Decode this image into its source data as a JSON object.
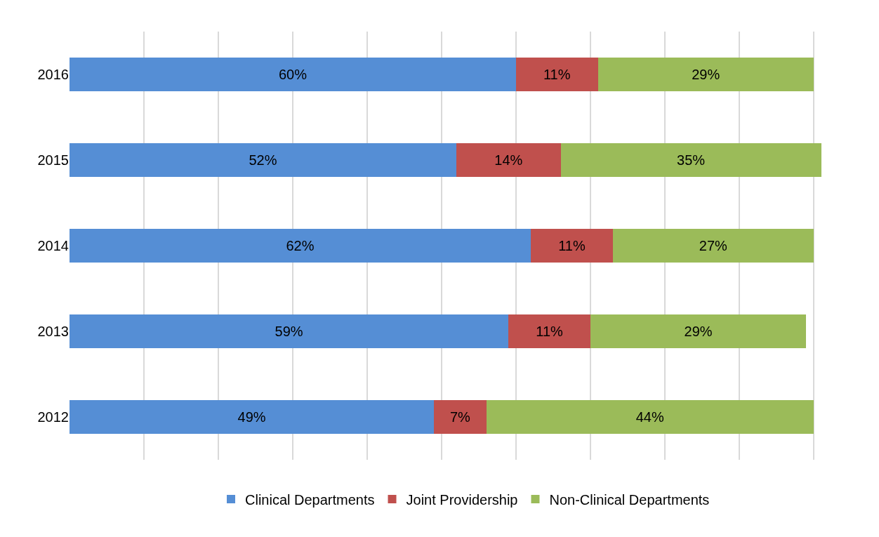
{
  "chart_data": {
    "type": "bar",
    "orientation": "horizontal",
    "stacked": true,
    "categories": [
      "2016",
      "2015",
      "2014",
      "2013",
      "2012"
    ],
    "series": [
      {
        "name": "Clinical Departments",
        "color": "#558ed5",
        "values": [
          60,
          52,
          62,
          59,
          49
        ],
        "value_labels": [
          "60%",
          "52%",
          "62%",
          "59%",
          "49%"
        ]
      },
      {
        "name": "Joint Providership",
        "color": "#c0504d",
        "values": [
          11,
          14,
          11,
          11,
          7
        ],
        "value_labels": [
          "11%",
          "14%",
          "11%",
          "11%",
          "7%"
        ]
      },
      {
        "name": "Non-Clinical Departments",
        "color": "#9bbb59",
        "values": [
          29,
          35,
          27,
          29,
          44
        ],
        "value_labels": [
          "29%",
          "35%",
          "27%",
          "29%",
          "44%"
        ]
      }
    ],
    "tick_labels": "y",
    "grid": "x",
    "legend": "bottom"
  }
}
